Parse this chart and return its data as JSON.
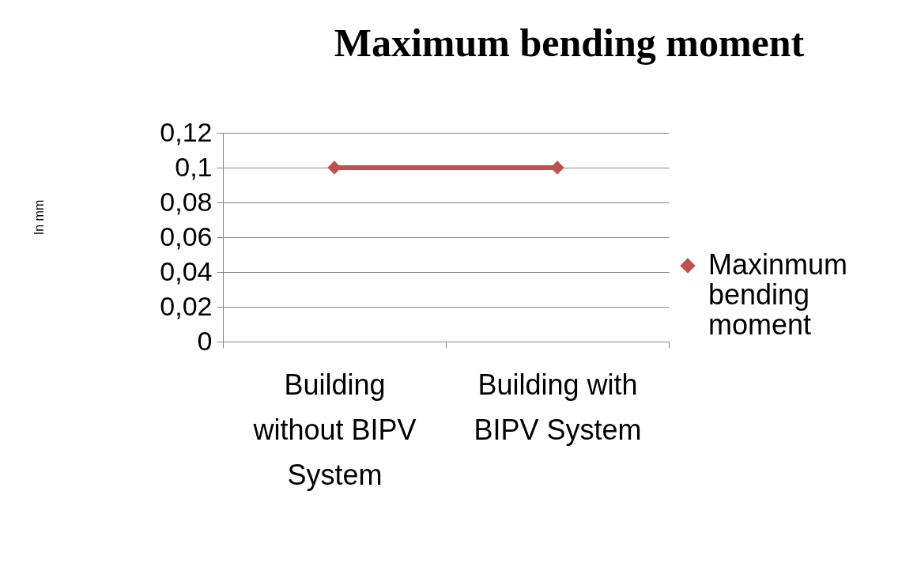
{
  "chart_data": {
    "type": "line",
    "title": "Maximum bending moment",
    "annotations": [
      "In mm"
    ],
    "categories": [
      "Building without BIPV System",
      "Building with BIPV System"
    ],
    "series": [
      {
        "name": "Maxinmum bending moment",
        "color": "#c0504d",
        "values": [
          0.1,
          0.1
        ]
      }
    ],
    "ylim": [
      0,
      0.12
    ],
    "yticks": [
      {
        "value": 0,
        "label": "0"
      },
      {
        "value": 0.02,
        "label": "0,02"
      },
      {
        "value": 0.04,
        "label": "0,04"
      },
      {
        "value": 0.06,
        "label": "0,06"
      },
      {
        "value": 0.08,
        "label": "0,08"
      },
      {
        "value": 0.1,
        "label": "0,1"
      },
      {
        "value": 0.12,
        "label": "0,12"
      }
    ],
    "grid": "y",
    "legend": "right",
    "marker": "diamond"
  }
}
